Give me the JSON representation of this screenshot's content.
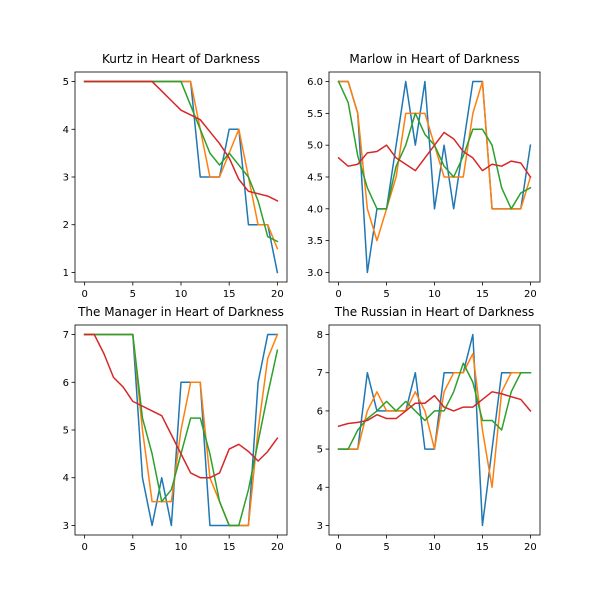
{
  "chart_data": [
    {
      "type": "line",
      "title": "Kurtz in Heart of Darkness",
      "xlim": [
        -1,
        21
      ],
      "ylim": [
        0.8,
        5.2
      ],
      "xticks": [
        0,
        5,
        10,
        15,
        20
      ],
      "yticks": [
        1,
        2,
        3,
        4,
        5
      ],
      "grid": false,
      "x": [
        0,
        1,
        2,
        3,
        4,
        5,
        6,
        7,
        8,
        9,
        10,
        11,
        12,
        13,
        14,
        15,
        16,
        17,
        18,
        19,
        20
      ],
      "series": [
        {
          "color": "#1f77b4",
          "values": [
            5,
            5,
            5,
            5,
            5,
            5,
            5,
            5,
            5,
            5,
            5,
            5,
            3,
            3,
            3,
            4,
            4,
            2,
            2,
            2,
            1
          ]
        },
        {
          "color": "#ff7f0e",
          "values": [
            5,
            5,
            5,
            5,
            5,
            5,
            5,
            5,
            5,
            5,
            5,
            5,
            4,
            3,
            3,
            3.5,
            4,
            3,
            2,
            2,
            1.5
          ]
        },
        {
          "color": "#2ca02c",
          "values": [
            5,
            5,
            5,
            5,
            5,
            5,
            5,
            5,
            5,
            5,
            5,
            4.5,
            4,
            3.5,
            3.25,
            3.5,
            3.25,
            3,
            2.5,
            1.75,
            1.65
          ]
        },
        {
          "color": "#d62728",
          "values": [
            5,
            5,
            5,
            5,
            5,
            5,
            5,
            5,
            4.8,
            4.6,
            4.4,
            4.3,
            4.2,
            3.95,
            3.7,
            3.4,
            2.95,
            2.7,
            2.65,
            2.6,
            2.5
          ]
        }
      ]
    },
    {
      "type": "line",
      "title": "Marlow in Heart of Darkness",
      "xlim": [
        -1,
        21
      ],
      "ylim": [
        2.85,
        6.15
      ],
      "xticks": [
        0,
        5,
        10,
        15,
        20
      ],
      "yticks": [
        3.0,
        3.5,
        4.0,
        4.5,
        5.0,
        5.5,
        6.0
      ],
      "ytick_labels": [
        "3.0",
        "3.5",
        "4.0",
        "4.5",
        "5.0",
        "5.5",
        "6.0"
      ],
      "grid": false,
      "x": [
        0,
        1,
        2,
        3,
        4,
        5,
        6,
        7,
        8,
        9,
        10,
        11,
        12,
        13,
        14,
        15,
        16,
        17,
        18,
        19,
        20
      ],
      "series": [
        {
          "color": "#1f77b4",
          "values": [
            6,
            6,
            5.5,
            3,
            4,
            4,
            5,
            6,
            5,
            6,
            4,
            5,
            4,
            5,
            6,
            6,
            4,
            4,
            4,
            4,
            5
          ]
        },
        {
          "color": "#ff7f0e",
          "values": [
            6,
            6,
            5.5,
            4,
            3.5,
            4,
            4.5,
            5.5,
            5.5,
            5.5,
            5,
            4.5,
            4.5,
            4.5,
            5.5,
            6,
            4,
            4,
            4,
            4,
            4.5
          ]
        },
        {
          "color": "#2ca02c",
          "values": [
            6,
            5.67,
            4.83,
            4.33,
            4,
            4,
            4.67,
            5,
            5.5,
            5.17,
            5,
            4.67,
            4.5,
            4.83,
            5.25,
            5.25,
            5,
            4.33,
            4,
            4.25,
            4.33
          ]
        },
        {
          "color": "#d62728",
          "values": [
            4.8,
            4.67,
            4.7,
            4.88,
            4.9,
            5,
            4.8,
            4.7,
            4.6,
            4.8,
            5,
            5.2,
            5.1,
            4.9,
            4.8,
            4.6,
            4.7,
            4.67,
            4.75,
            4.72,
            4.5
          ]
        }
      ]
    },
    {
      "type": "line",
      "title": "The Manager in Heart of Darkness",
      "xlim": [
        -1,
        21
      ],
      "ylim": [
        2.8,
        7.2
      ],
      "xticks": [
        0,
        5,
        10,
        15,
        20
      ],
      "yticks": [
        3,
        4,
        5,
        6,
        7
      ],
      "grid": false,
      "x": [
        0,
        1,
        2,
        3,
        4,
        5,
        6,
        7,
        8,
        9,
        10,
        11,
        12,
        13,
        14,
        15,
        16,
        17,
        18,
        19,
        20
      ],
      "series": [
        {
          "color": "#1f77b4",
          "values": [
            7,
            7,
            7,
            7,
            7,
            7,
            4,
            3,
            4,
            3,
            6,
            6,
            6,
            3,
            3,
            3,
            3,
            3,
            6,
            7,
            7
          ]
        },
        {
          "color": "#ff7f0e",
          "values": [
            7,
            7,
            7,
            7,
            7,
            7,
            5,
            3.5,
            3.5,
            3.5,
            5,
            6,
            6,
            4,
            3.5,
            3,
            3,
            3,
            5,
            6.5,
            7
          ]
        },
        {
          "color": "#2ca02c",
          "values": [
            7,
            7,
            7,
            7,
            7,
            7,
            5.25,
            4.5,
            3.5,
            3.75,
            4.5,
            5.25,
            5.25,
            4.5,
            3.5,
            3,
            3,
            3.75,
            4.75,
            5.75,
            6.67
          ]
        },
        {
          "color": "#d62728",
          "values": [
            7,
            7,
            6.6,
            6.1,
            5.9,
            5.6,
            5.5,
            5.4,
            5.3,
            4.9,
            4.5,
            4.1,
            4,
            4,
            4.1,
            4.6,
            4.7,
            4.55,
            4.35,
            4.55,
            4.83
          ]
        }
      ]
    },
    {
      "type": "line",
      "title": "The Russian in Heart of Darkness",
      "xlim": [
        -1,
        21
      ],
      "ylim": [
        2.75,
        8.25
      ],
      "xticks": [
        0,
        5,
        10,
        15,
        20
      ],
      "yticks": [
        3,
        4,
        5,
        6,
        7,
        8
      ],
      "grid": false,
      "x": [
        0,
        1,
        2,
        3,
        4,
        5,
        6,
        7,
        8,
        9,
        10,
        11,
        12,
        13,
        14,
        15,
        16,
        17,
        18,
        19,
        20
      ],
      "series": [
        {
          "color": "#1f77b4",
          "values": [
            5,
            5,
            5,
            7,
            6,
            6,
            6,
            6,
            7,
            5,
            5,
            7,
            7,
            7,
            8,
            3,
            5,
            7,
            7,
            7,
            7
          ]
        },
        {
          "color": "#ff7f0e",
          "values": [
            5,
            5,
            5,
            6,
            6.5,
            6,
            6,
            6,
            6.5,
            6,
            5,
            6.5,
            7,
            7,
            7.5,
            5.5,
            4,
            6.5,
            7,
            7,
            7
          ]
        },
        {
          "color": "#2ca02c",
          "values": [
            5,
            5,
            5.5,
            5.8,
            6,
            6.25,
            6,
            6.25,
            6,
            5.75,
            6,
            6,
            6.5,
            7.25,
            6.75,
            5.75,
            5.75,
            5.5,
            6.5,
            7,
            7
          ]
        },
        {
          "color": "#d62728",
          "values": [
            5.6,
            5.67,
            5.7,
            5.75,
            5.9,
            5.8,
            5.8,
            6,
            6.2,
            6.2,
            6.4,
            6.1,
            6,
            6.1,
            6.1,
            6.3,
            6.5,
            6.45,
            6.37,
            6.3,
            6
          ]
        }
      ]
    }
  ]
}
